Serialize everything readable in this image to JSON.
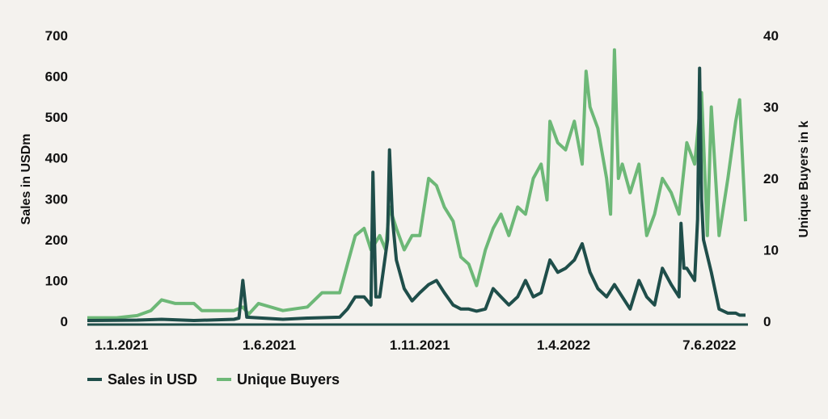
{
  "chart_data": {
    "type": "line",
    "title": "",
    "start_date": "2020-11-28",
    "x_unit": "days since start_date",
    "ylabel_left": "Sales in USDm",
    "ylabel_right": "Unique Buyers in k",
    "ylim_left": [
      0,
      700
    ],
    "ylim_right": [
      0,
      40
    ],
    "xlim": [
      0,
      673
    ],
    "yticks_left": [
      "0",
      "100",
      "200",
      "300",
      "400",
      "500",
      "600",
      "700"
    ],
    "yticks_right": [
      "0",
      "10",
      "20",
      "30",
      "40"
    ],
    "xticks": [
      {
        "label": "1.1.2021",
        "day": 35
      },
      {
        "label": "1.6.2021",
        "day": 186
      },
      {
        "label": "1.11.2021",
        "day": 340
      },
      {
        "label": "1.4.2022",
        "day": 487
      },
      {
        "label": "7.6.2022",
        "day": 636
      }
    ],
    "grid": false,
    "legend_placement": "bottom-left",
    "series": [
      {
        "name": "Unique Buyers",
        "axis": "right",
        "color": "#6db877",
        "points": [
          [
            0,
            0.5
          ],
          [
            30,
            0.5
          ],
          [
            51,
            0.8
          ],
          [
            65,
            1.5
          ],
          [
            76,
            3
          ],
          [
            90,
            2.5
          ],
          [
            109,
            2.5
          ],
          [
            117,
            1.5
          ],
          [
            150,
            1.5
          ],
          [
            159,
            2
          ],
          [
            165,
            1
          ],
          [
            175,
            2.5
          ],
          [
            200,
            1.5
          ],
          [
            225,
            2
          ],
          [
            240,
            4
          ],
          [
            258,
            4
          ],
          [
            266,
            8
          ],
          [
            274,
            12
          ],
          [
            283,
            13
          ],
          [
            290,
            10
          ],
          [
            299,
            12
          ],
          [
            305,
            10
          ],
          [
            309,
            16
          ],
          [
            316,
            13
          ],
          [
            324,
            10
          ],
          [
            332,
            12
          ],
          [
            340,
            12
          ],
          [
            349,
            20
          ],
          [
            357,
            19
          ],
          [
            365,
            16
          ],
          [
            374,
            14
          ],
          [
            382,
            9
          ],
          [
            390,
            8
          ],
          [
            398,
            5
          ],
          [
            407,
            10
          ],
          [
            415,
            13
          ],
          [
            423,
            15
          ],
          [
            431,
            12
          ],
          [
            440,
            16
          ],
          [
            448,
            15
          ],
          [
            456,
            20
          ],
          [
            464,
            22
          ],
          [
            470,
            17
          ],
          [
            473,
            28
          ],
          [
            481,
            25
          ],
          [
            489,
            24
          ],
          [
            498,
            28
          ],
          [
            506,
            22
          ],
          [
            510,
            35
          ],
          [
            514,
            30
          ],
          [
            522,
            27
          ],
          [
            531,
            20
          ],
          [
            535,
            15
          ],
          [
            539,
            38
          ],
          [
            543,
            20
          ],
          [
            547,
            22
          ],
          [
            555,
            18
          ],
          [
            564,
            22
          ],
          [
            572,
            12
          ],
          [
            580,
            15
          ],
          [
            588,
            20
          ],
          [
            597,
            18
          ],
          [
            605,
            15
          ],
          [
            613,
            25
          ],
          [
            621,
            22
          ],
          [
            628,
            32
          ],
          [
            634,
            12
          ],
          [
            638,
            30
          ],
          [
            646,
            12
          ],
          [
            655,
            20
          ],
          [
            663,
            28
          ],
          [
            667,
            31
          ],
          [
            673,
            14
          ]
        ]
      },
      {
        "name": "Sales in USD",
        "axis": "left",
        "color": "#1f4e4a",
        "points": [
          [
            0,
            2
          ],
          [
            51,
            3
          ],
          [
            76,
            5
          ],
          [
            109,
            2
          ],
          [
            150,
            5
          ],
          [
            155,
            8
          ],
          [
            159,
            100
          ],
          [
            163,
            10
          ],
          [
            200,
            5
          ],
          [
            225,
            8
          ],
          [
            258,
            10
          ],
          [
            266,
            30
          ],
          [
            274,
            60
          ],
          [
            283,
            60
          ],
          [
            290,
            40
          ],
          [
            292,
            365
          ],
          [
            295,
            60
          ],
          [
            299,
            60
          ],
          [
            307,
            200
          ],
          [
            309,
            420
          ],
          [
            312,
            250
          ],
          [
            316,
            150
          ],
          [
            324,
            80
          ],
          [
            332,
            50
          ],
          [
            340,
            70
          ],
          [
            349,
            90
          ],
          [
            357,
            100
          ],
          [
            365,
            70
          ],
          [
            374,
            40
          ],
          [
            382,
            30
          ],
          [
            390,
            30
          ],
          [
            398,
            25
          ],
          [
            407,
            30
          ],
          [
            415,
            80
          ],
          [
            423,
            60
          ],
          [
            431,
            40
          ],
          [
            440,
            60
          ],
          [
            448,
            100
          ],
          [
            456,
            60
          ],
          [
            464,
            70
          ],
          [
            473,
            150
          ],
          [
            481,
            120
          ],
          [
            489,
            130
          ],
          [
            498,
            150
          ],
          [
            506,
            190
          ],
          [
            514,
            120
          ],
          [
            522,
            80
          ],
          [
            531,
            60
          ],
          [
            539,
            90
          ],
          [
            547,
            60
          ],
          [
            555,
            30
          ],
          [
            564,
            100
          ],
          [
            572,
            60
          ],
          [
            580,
            40
          ],
          [
            588,
            130
          ],
          [
            597,
            90
          ],
          [
            605,
            60
          ],
          [
            607,
            240
          ],
          [
            610,
            130
          ],
          [
            613,
            130
          ],
          [
            621,
            100
          ],
          [
            624,
            250
          ],
          [
            626,
            620
          ],
          [
            628,
            300
          ],
          [
            630,
            200
          ],
          [
            638,
            120
          ],
          [
            646,
            30
          ],
          [
            655,
            20
          ],
          [
            663,
            20
          ],
          [
            667,
            15
          ],
          [
            673,
            15
          ]
        ]
      }
    ],
    "legend": [
      "Sales in USD",
      "Unique Buyers"
    ]
  }
}
